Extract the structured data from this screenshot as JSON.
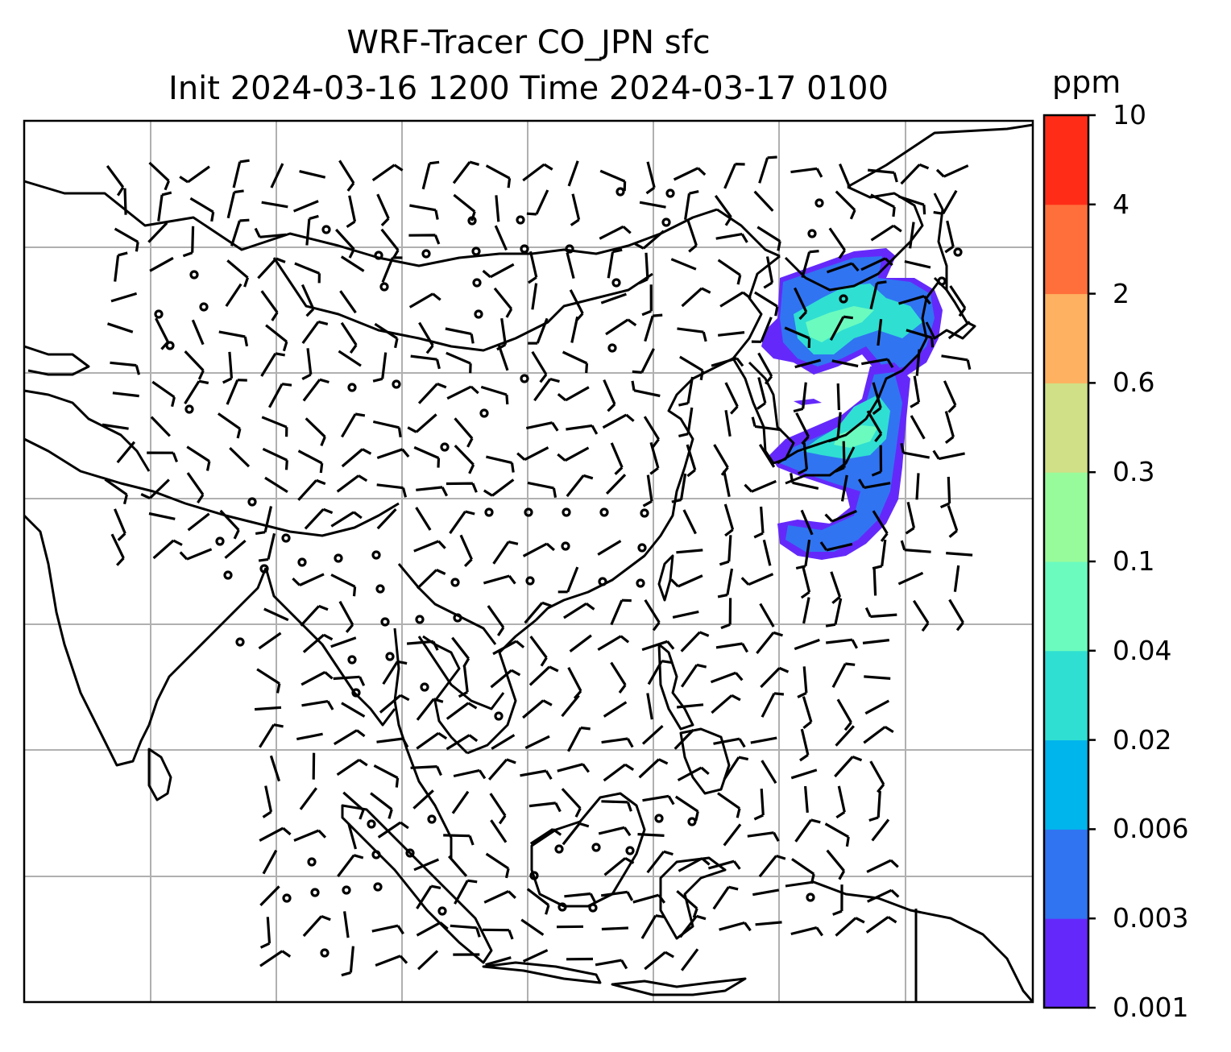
{
  "title": {
    "line1": "WRF-Tracer CO_JPN sfc",
    "line2": "Init 2024-03-16 1200 Time 2024-03-17 0100"
  },
  "colorbar": {
    "unit": "ppm",
    "levels": [
      "0.001",
      "0.003",
      "0.006",
      "0.02",
      "0.04",
      "0.1",
      "0.3",
      "0.6",
      "2",
      "4",
      "10"
    ],
    "colors": [
      "#6429fa",
      "#3074f2",
      "#00b4ec",
      "#2fdfd2",
      "#6bfbbf",
      "#98fb9b",
      "#d0e086",
      "#feb261",
      "#ff6f3c",
      "#ff2d18"
    ]
  },
  "map": {
    "gridlines": "on",
    "coastline_color": "#000000",
    "grid_color": "#b0b0b0",
    "wind_barbs": "on",
    "tracer_region": "Japan"
  }
}
